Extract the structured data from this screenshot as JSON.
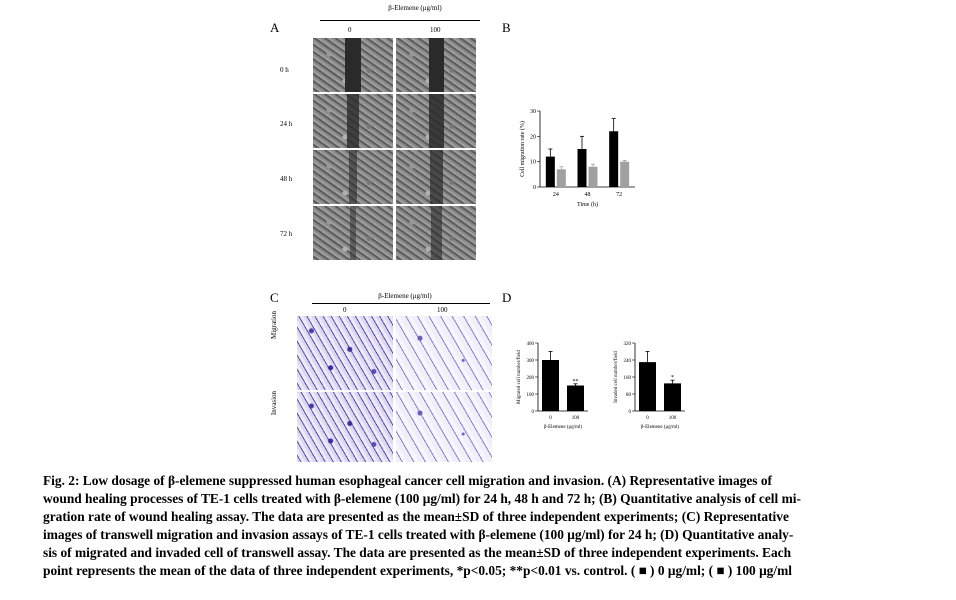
{
  "panel_a": {
    "letter": "A",
    "header": "β-Elemene (μg/ml)",
    "col_labels": [
      "0",
      "100"
    ],
    "row_labels": [
      "0 h",
      "24 h",
      "48 h",
      "72 h"
    ]
  },
  "panel_b": {
    "letter": "B"
  },
  "panel_c": {
    "letter": "C",
    "header": "β-Elemene (μg/ml)",
    "col_labels": [
      "0",
      "100"
    ],
    "row_labels": [
      "Migration",
      "Invasion"
    ]
  },
  "panel_d": {
    "letter": "D"
  },
  "chart_data": [
    {
      "type": "bar",
      "panel": "B",
      "categories": [
        "24",
        "48",
        "72"
      ],
      "xlabel": "Time (h)",
      "ylabel": "Cell migration rate (%)",
      "ylim": [
        0,
        30
      ],
      "yticks": [
        "0",
        "10",
        "20",
        "30"
      ],
      "series": [
        {
          "values": [
            12,
            15,
            22
          ],
          "errors": [
            3,
            5,
            5
          ],
          "color": "#000000"
        },
        {
          "values": [
            7,
            8,
            10
          ],
          "errors": [
            1,
            1,
            0.5
          ],
          "color": "#a0a0a0"
        }
      ]
    },
    {
      "type": "bar",
      "panel": "D-left",
      "categories": [
        "0",
        "100"
      ],
      "xlabel": "β-Elemene (μg/ml)",
      "ylabel": "Migrated cell number/field",
      "ylim": [
        0,
        400
      ],
      "yticks": [
        "0",
        "100",
        "200",
        "300",
        "400"
      ],
      "values": [
        300,
        150
      ],
      "errors": [
        50,
        10
      ],
      "annotations": [
        "",
        "**"
      ]
    },
    {
      "type": "bar",
      "panel": "D-right",
      "categories": [
        "0",
        "100"
      ],
      "xlabel": "β-Elemene (μg/ml)",
      "ylabel": "Invaded cell number/field",
      "ylim": [
        0,
        320
      ],
      "yticks": [
        "0",
        "80",
        "160",
        "240",
        "320"
      ],
      "values": [
        230,
        130
      ],
      "errors": [
        50,
        15
      ],
      "annotations": [
        "",
        "*"
      ]
    }
  ],
  "caption": {
    "line1": "Fig. 2: Low dosage of β-elemene suppressed human esophageal cancer cell migration and invasion. (A) Representative images of",
    "line2": "wound healing processes of TE-1 cells treated with β-elemene (100 μg/ml) for 24 h, 48 h and 72 h; (B) Quantitative analysis of cell mi-",
    "line3": "gration rate of wound healing assay. The data are presented as the mean±SD of three independent experiments; (C) Representative",
    "line4": "images of transwell migration and invasion assays of TE-1 cells treated with β-elemene (100 μg/ml) for 24 h; (D) Quantitative analy-",
    "line5": "sis of migrated and invaded cell of transwell assay. The data are presented as the mean±SD of three independent experiments. Each",
    "line6": "point represents the mean of the data of three independent experiments, *p<0.05; **p<0.01 vs. control. ( ■ ) 0 μg/ml; ( ■ ) 100 μg/ml"
  }
}
